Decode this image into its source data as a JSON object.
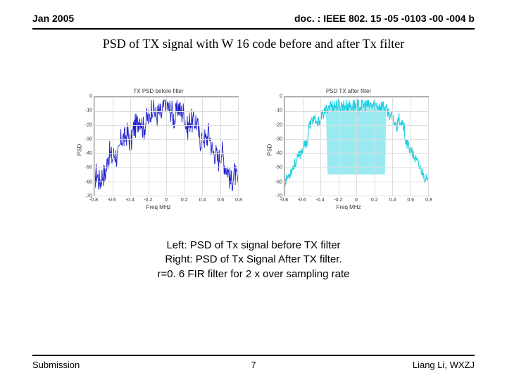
{
  "header": {
    "date": "Jan 2005",
    "doc": "doc. : IEEE 802. 15 -05 -0103 -00 -004 b"
  },
  "title": "PSD of TX signal with W 16 code  before and after Tx filter",
  "caption": {
    "line1": "Left: PSD of Tx signal before TX filter",
    "line2": "Right: PSD of Tx Signal After TX filter.",
    "line3": "r=0. 6 FIR filter for 2 x over sampling rate"
  },
  "footer": {
    "left": "Submission",
    "page": "7",
    "right": "Liang Li, WXZJ"
  },
  "chart_left": {
    "title": "TX PSD before filter",
    "ylabel": "PSD",
    "xlabel": "Freq MHz",
    "line_color": "#2020d0",
    "grid_color": "#dddddd",
    "yticks": [
      0,
      -10,
      -20,
      -30,
      -40,
      -50,
      -60,
      -70
    ],
    "xticks": [
      "-0.8",
      "-0.6",
      "-0.4",
      "-0.2",
      "0",
      "0.2",
      "0.4",
      "0.6",
      "0.8"
    ],
    "ylim": [
      -70,
      0
    ],
    "xlim": [
      -0.8,
      0.8
    ]
  },
  "chart_right": {
    "title": "PSD TX after filter",
    "ylabel": "PSD",
    "xlabel": "Freq MHz",
    "line_color": "#20d0e0",
    "grid_color": "#dddddd",
    "yticks": [
      0,
      -10,
      -20,
      -30,
      -40,
      -50,
      -60,
      -70
    ],
    "xticks": [
      "-0.8",
      "-0.6",
      "-0.4",
      "-0.2",
      "0",
      "0.2",
      "0.4",
      "0.6",
      "0.8"
    ],
    "ylim": [
      -70,
      0
    ],
    "xlim": [
      -0.8,
      0.8
    ]
  }
}
